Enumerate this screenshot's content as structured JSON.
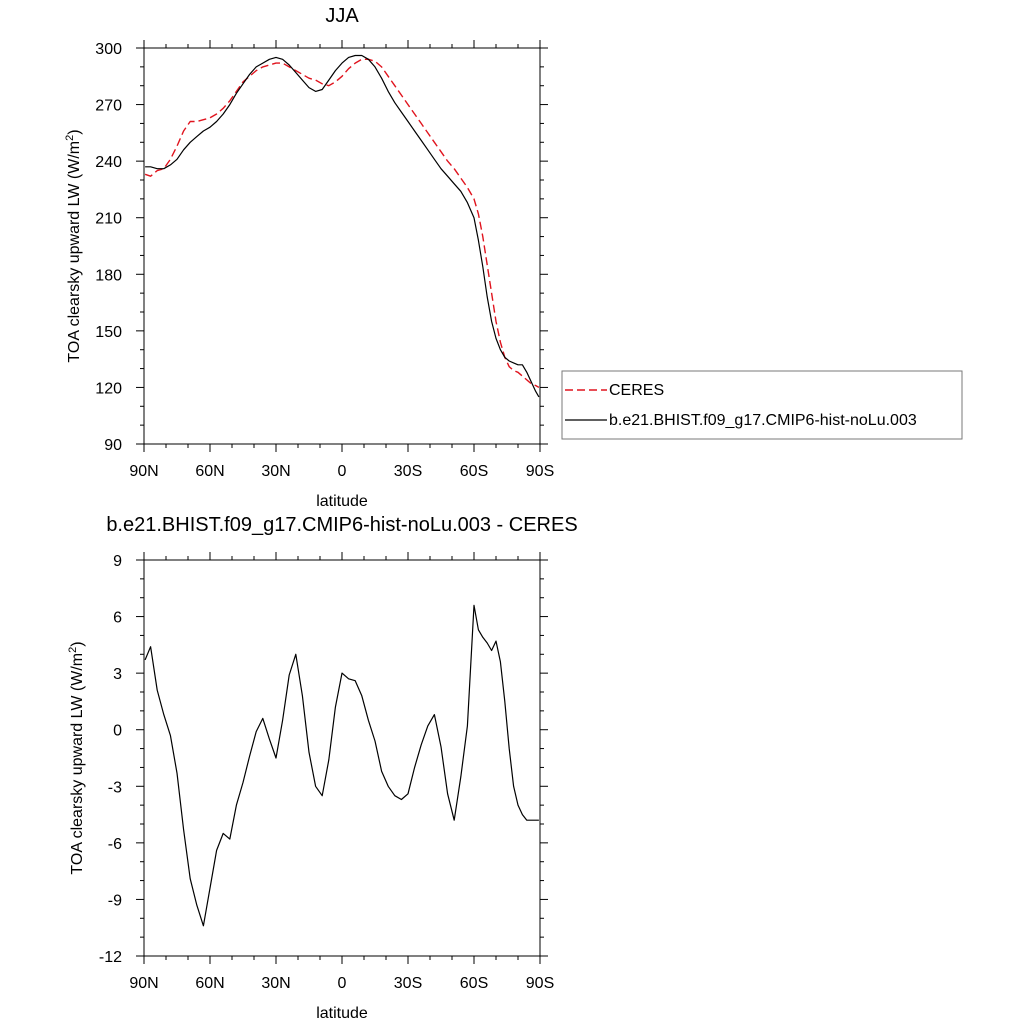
{
  "chart_data": [
    {
      "type": "line",
      "title": "JJA",
      "xlabel": "latitude",
      "ylabel": "TOA clearsky upward LW (W/m",
      "ylabel_sup": "2",
      "ylabel_end": ")",
      "xlim": [
        90,
        -90
      ],
      "ylim": [
        90,
        300
      ],
      "xticks": [
        {
          "value": 90,
          "label": "90N"
        },
        {
          "value": 60,
          "label": "60N"
        },
        {
          "value": 30,
          "label": "30N"
        },
        {
          "value": 0,
          "label": "0"
        },
        {
          "value": -30,
          "label": "30S"
        },
        {
          "value": -60,
          "label": "60S"
        },
        {
          "value": -90,
          "label": "90S"
        }
      ],
      "yticks": [
        90,
        120,
        150,
        180,
        210,
        240,
        270,
        300
      ],
      "legend": "right",
      "series": [
        {
          "name": "CERES",
          "color": "#e0141e",
          "dash": true,
          "x": [
            89.5,
            87,
            84,
            81,
            78,
            75,
            72,
            69,
            66,
            63,
            60,
            57,
            54,
            51,
            48,
            45,
            42,
            39,
            36,
            33,
            30,
            27,
            24,
            21,
            18,
            15,
            12,
            9,
            6,
            3,
            0,
            -3,
            -6,
            -9,
            -12,
            -15,
            -18,
            -21,
            -24,
            -27,
            -30,
            -33,
            -36,
            -39,
            -42,
            -45,
            -48,
            -51,
            -54,
            -57,
            -60,
            -62,
            -64,
            -66,
            -68,
            -70,
            -72,
            -74,
            -76,
            -78,
            -80,
            -82,
            -84,
            -86,
            -88,
            -89.5
          ],
          "y": [
            233,
            232,
            235,
            236,
            241,
            248,
            256,
            261,
            261,
            262,
            263,
            265,
            268,
            272,
            277,
            282,
            285,
            288,
            290,
            291,
            292,
            292,
            290,
            288,
            286,
            284,
            283,
            281,
            280,
            282,
            285,
            289,
            292,
            294,
            294,
            293,
            290,
            285,
            280,
            275,
            270,
            265,
            260,
            255,
            250,
            245,
            240,
            236,
            231,
            226,
            220,
            212,
            200,
            185,
            170,
            155,
            144,
            136,
            131,
            129,
            128,
            126,
            124,
            122,
            121,
            120
          ]
        },
        {
          "name": "b.e21.BHIST.f09_g17.CMIP6-hist-noLu.003",
          "color": "#000000",
          "dash": false,
          "x": [
            89.5,
            87,
            84,
            81,
            78,
            75,
            72,
            69,
            66,
            63,
            60,
            57,
            54,
            51,
            48,
            45,
            42,
            39,
            36,
            33,
            30,
            27,
            24,
            21,
            18,
            15,
            12,
            9,
            6,
            3,
            0,
            -3,
            -6,
            -9,
            -12,
            -15,
            -18,
            -21,
            -24,
            -27,
            -30,
            -33,
            -36,
            -39,
            -42,
            -45,
            -48,
            -51,
            -54,
            -57,
            -60,
            -62,
            -64,
            -66,
            -68,
            -70,
            -72,
            -74,
            -76,
            -78,
            -80,
            -82,
            -84,
            -86,
            -88,
            -89.5
          ],
          "y": [
            237,
            237,
            236,
            236,
            238,
            241,
            246,
            250,
            253,
            256,
            258,
            261,
            265,
            270,
            276,
            281,
            286,
            290,
            292,
            294,
            295,
            294,
            291,
            287,
            283,
            279,
            277,
            278,
            283,
            288,
            292,
            295,
            296,
            296,
            294,
            290,
            284,
            277,
            271,
            266,
            261,
            256,
            251,
            246,
            241,
            236,
            232,
            228,
            224,
            218,
            210,
            198,
            184,
            168,
            155,
            146,
            140,
            136,
            134,
            133,
            132,
            132,
            128,
            123,
            118,
            115
          ]
        }
      ]
    },
    {
      "type": "line",
      "title": "b.e21.BHIST.f09_g17.CMIP6-hist-noLu.003 - CERES",
      "xlabel": "latitude",
      "ylabel": "TOA clearsky upward LW (W/m",
      "ylabel_sup": "2",
      "ylabel_end": ")",
      "xlim": [
        90,
        -90
      ],
      "ylim": [
        -12,
        9
      ],
      "xticks": [
        {
          "value": 90,
          "label": "90N"
        },
        {
          "value": 60,
          "label": "60N"
        },
        {
          "value": 30,
          "label": "30N"
        },
        {
          "value": 0,
          "label": "0"
        },
        {
          "value": -30,
          "label": "30S"
        },
        {
          "value": -60,
          "label": "60S"
        },
        {
          "value": -90,
          "label": "90S"
        }
      ],
      "yticks": [
        -12,
        -9,
        -6,
        -3,
        0,
        3,
        6,
        9
      ],
      "series": [
        {
          "color": "#000000",
          "dash": false,
          "x": [
            89.5,
            87,
            84,
            81,
            78,
            75,
            72,
            69,
            66,
            63,
            60,
            57,
            54,
            51,
            48,
            45,
            42,
            39,
            36,
            33,
            30,
            27,
            24,
            21,
            18,
            15,
            12,
            9,
            6,
            3,
            0,
            -3,
            -6,
            -9,
            -12,
            -15,
            -18,
            -21,
            -24,
            -27,
            -30,
            -33,
            -36,
            -39,
            -42,
            -45,
            -48,
            -51,
            -54,
            -57,
            -60,
            -62,
            -64,
            -66,
            -68,
            -70,
            -72,
            -74,
            -76,
            -78,
            -80,
            -82,
            -84,
            -86,
            -88,
            -89.5
          ],
          "y": [
            3.7,
            4.4,
            2.1,
            0.8,
            -0.3,
            -2.3,
            -5.3,
            -7.9,
            -9.3,
            -10.4,
            -8.4,
            -6.4,
            -5.5,
            -5.8,
            -4.0,
            -2.8,
            -1.4,
            -0.1,
            0.6,
            -0.5,
            -1.5,
            0.5,
            2.9,
            4.0,
            1.8,
            -1.2,
            -3.0,
            -3.5,
            -1.6,
            1.2,
            3.0,
            2.7,
            2.6,
            1.8,
            0.5,
            -0.6,
            -2.2,
            -3.0,
            -3.5,
            -3.7,
            -3.4,
            -2.0,
            -0.8,
            0.2,
            0.8,
            -0.9,
            -3.4,
            -4.8,
            -2.5,
            0.2,
            6.6,
            5.3,
            4.9,
            4.6,
            4.2,
            4.7,
            3.6,
            1.5,
            -1.0,
            -3.0,
            -4.0,
            -4.5,
            -4.8,
            -4.8,
            -4.8,
            -4.8
          ]
        }
      ]
    }
  ]
}
